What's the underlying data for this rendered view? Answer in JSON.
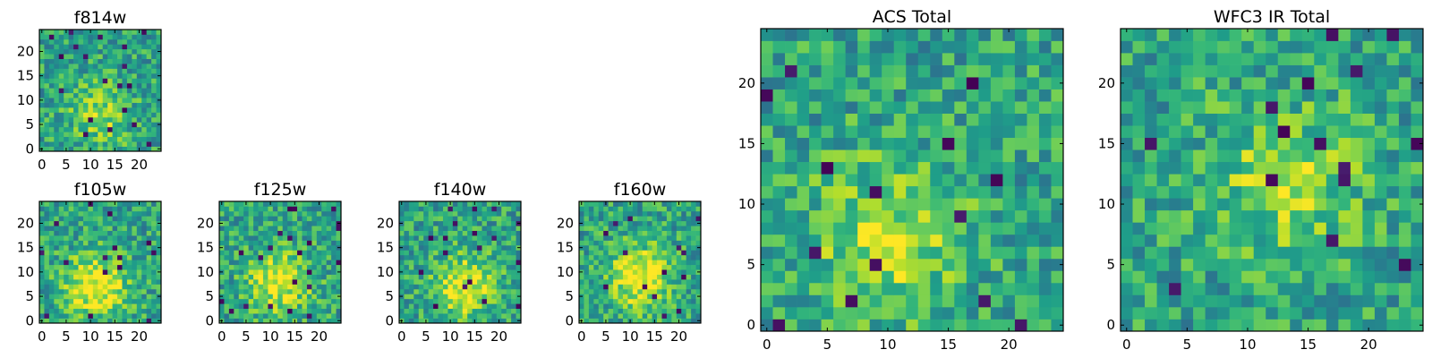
{
  "chart_data": [
    {
      "type": "heatmap",
      "title": "f814w",
      "xlabel": "",
      "ylabel": "",
      "grid": false,
      "colormap": "viridis",
      "shape": [
        25,
        25
      ],
      "xlim": [
        0,
        24
      ],
      "ylim": [
        0,
        24
      ],
      "xticks": [
        0,
        5,
        10,
        15,
        20
      ],
      "yticks": [
        0,
        5,
        10,
        15,
        20
      ],
      "value_range": [
        0,
        1
      ],
      "values": "25x25 pixel-intensity grid, noisy field; brighter cluster near (12,7); exact pixel values not legible"
    },
    {
      "type": "heatmap",
      "title": "f105w",
      "colormap": "viridis",
      "shape": [
        25,
        25
      ],
      "xlim": [
        0,
        24
      ],
      "ylim": [
        0,
        24
      ],
      "xticks": [
        0,
        5,
        10,
        15,
        20
      ],
      "yticks": [
        0,
        5,
        10,
        15,
        20
      ],
      "value_range": [
        0,
        1
      ],
      "values": "25x25 pixel-intensity grid; bright source centered near (11,7); exact pixel values not legible"
    },
    {
      "type": "heatmap",
      "title": "f125w",
      "colormap": "viridis",
      "shape": [
        25,
        25
      ],
      "xlim": [
        0,
        24
      ],
      "ylim": [
        0,
        24
      ],
      "xticks": [
        0,
        5,
        10,
        15,
        20
      ],
      "yticks": [
        0,
        5,
        10,
        15,
        20
      ],
      "value_range": [
        0,
        1
      ],
      "values": "25x25 pixel-intensity grid; bright source centered near (12,8); exact pixel values not legible"
    },
    {
      "type": "heatmap",
      "title": "f140w",
      "colormap": "viridis",
      "shape": [
        25,
        25
      ],
      "xlim": [
        0,
        24
      ],
      "ylim": [
        0,
        24
      ],
      "xticks": [
        0,
        5,
        10,
        15,
        20
      ],
      "yticks": [
        0,
        5,
        10,
        15,
        20
      ],
      "value_range": [
        0,
        1
      ],
      "values": "25x25 pixel-intensity grid; bright source centered near (13,7); exact pixel values not legible"
    },
    {
      "type": "heatmap",
      "title": "f160w",
      "colormap": "viridis",
      "shape": [
        25,
        25
      ],
      "xlim": [
        0,
        24
      ],
      "ylim": [
        0,
        24
      ],
      "xticks": [
        0,
        5,
        10,
        15,
        20
      ],
      "yticks": [
        0,
        5,
        10,
        15,
        20
      ],
      "value_range": [
        0,
        1
      ],
      "values": "25x25 pixel-intensity grid; bright source centered near (12,9); exact pixel values not legible"
    },
    {
      "type": "heatmap",
      "title": "ACS Total",
      "colormap": "viridis",
      "shape": [
        25,
        25
      ],
      "xlim": [
        0,
        24
      ],
      "ylim": [
        0,
        24
      ],
      "xticks": [
        0,
        5,
        10,
        15,
        20
      ],
      "yticks": [
        0,
        5,
        10,
        15,
        20
      ],
      "value_range": [
        0,
        1
      ],
      "values": "25x25 pixel-intensity grid; brightest region near (10,7); exact pixel values not legible"
    },
    {
      "type": "heatmap",
      "title": "WFC3 IR Total",
      "colormap": "viridis",
      "shape": [
        25,
        25
      ],
      "xlim": [
        0,
        24
      ],
      "ylim": [
        0,
        24
      ],
      "xticks": [
        0,
        5,
        10,
        15,
        20
      ],
      "yticks": [
        0,
        5,
        10,
        15,
        20
      ],
      "value_range": [
        0,
        1
      ],
      "values": "25x25 pixel-intensity grid; broad bright region near (13,12); exact pixel values not legible"
    }
  ]
}
